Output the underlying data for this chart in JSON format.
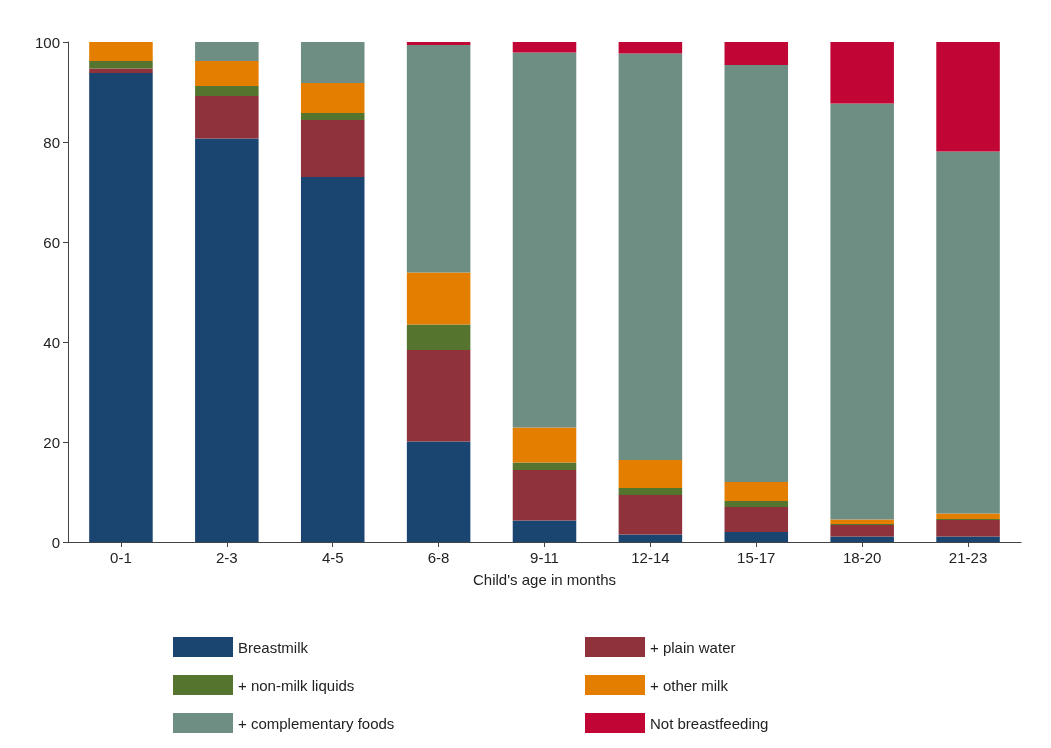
{
  "chart_data": {
    "type": "bar",
    "stacked": true,
    "xlabel": "Child's age in months",
    "categories": [
      "0-1",
      "2-3",
      "4-5",
      "6-8",
      "9-11",
      "12-14",
      "15-17",
      "18-20",
      "21-23"
    ],
    "series": [
      {
        "name": "Breastmilk",
        "color": "#1a4570",
        "values": [
          93.8,
          80.7,
          73.0,
          20.1,
          4.3,
          1.5,
          2.0,
          1.1,
          1.1
        ]
      },
      {
        "name": "+ plain water",
        "color": "#8f323b",
        "values": [
          0.9,
          8.5,
          11.4,
          18.3,
          10.1,
          7.9,
          5.0,
          2.3,
          3.3
        ]
      },
      {
        "name": "+ non-milk liquids",
        "color": "#55752f",
        "values": [
          1.5,
          2.0,
          1.4,
          5.1,
          1.5,
          1.4,
          1.2,
          0.2,
          0.2
        ]
      },
      {
        "name": "+ other milk",
        "color": "#e37e00",
        "values": [
          3.8,
          5.0,
          6.0,
          10.4,
          7.0,
          5.6,
          3.8,
          0.9,
          1.1
        ]
      },
      {
        "name": "+ complementary foods",
        "color": "#6e8e84",
        "values": [
          0,
          3.8,
          8.2,
          45.5,
          75.0,
          81.3,
          83.4,
          83.2,
          72.4
        ]
      },
      {
        "name": "Not breastfeeding",
        "color": "#c10534",
        "values": [
          0,
          0,
          0,
          0.6,
          2.1,
          2.3,
          4.6,
          12.3,
          21.9
        ]
      }
    ],
    "ylim": [
      0,
      100
    ],
    "yticks": [
      0,
      20,
      40,
      60,
      80,
      100
    ],
    "legend": "bottom"
  }
}
